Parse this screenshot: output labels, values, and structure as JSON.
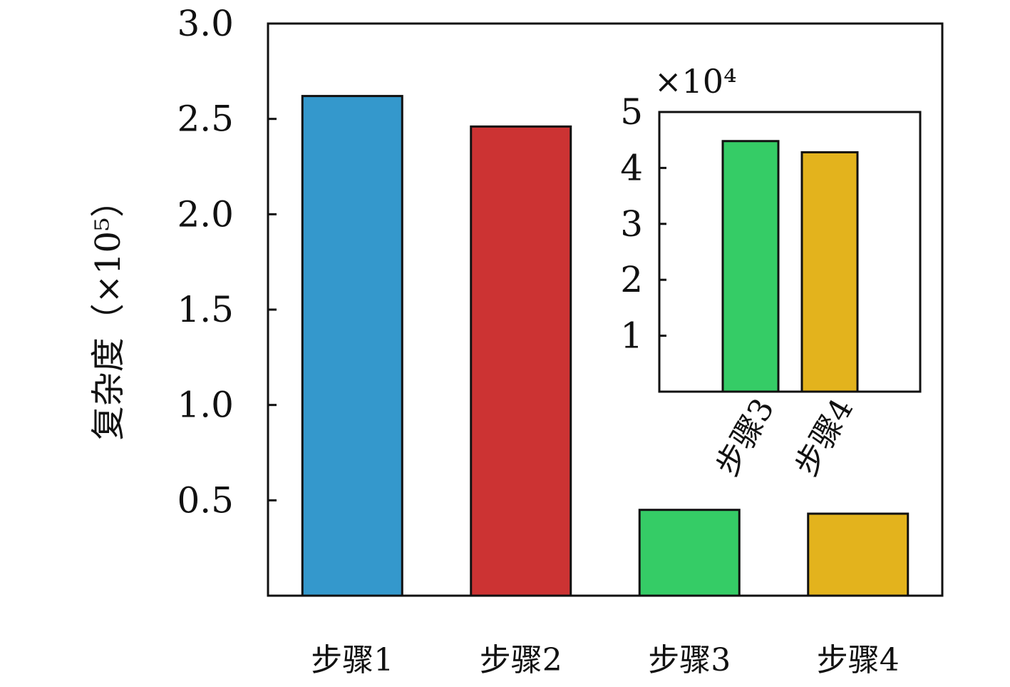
{
  "chart_data": [
    {
      "type": "bar",
      "categories": [
        "步骤1",
        "步骤2",
        "步骤3",
        "步骤4"
      ],
      "values": [
        2.62,
        2.46,
        0.45,
        0.43
      ],
      "colors": [
        "#3498cc",
        "#cc3333",
        "#35cc66",
        "#e3b31d"
      ],
      "ylabel": "复杂度（×10⁵）",
      "ylim": [
        0,
        3.0
      ],
      "yticks": [
        0.5,
        1.0,
        1.5,
        2.0,
        2.5,
        3.0
      ],
      "ytick_labels": [
        "0.5",
        "1.0",
        "1.5",
        "2.0",
        "2.5",
        "3.0"
      ],
      "grid": false
    },
    {
      "type": "bar",
      "role": "inset",
      "categories": [
        "步骤3",
        "步骤4"
      ],
      "values": [
        4.48,
        4.28
      ],
      "colors": [
        "#35cc66",
        "#e3b31d"
      ],
      "multiplier_label": "×10⁴",
      "ylim": [
        0,
        5
      ],
      "yticks": [
        1,
        2,
        3,
        4,
        5
      ],
      "ytick_labels": [
        "1",
        "2",
        "3",
        "4",
        "5"
      ],
      "grid": false
    }
  ]
}
